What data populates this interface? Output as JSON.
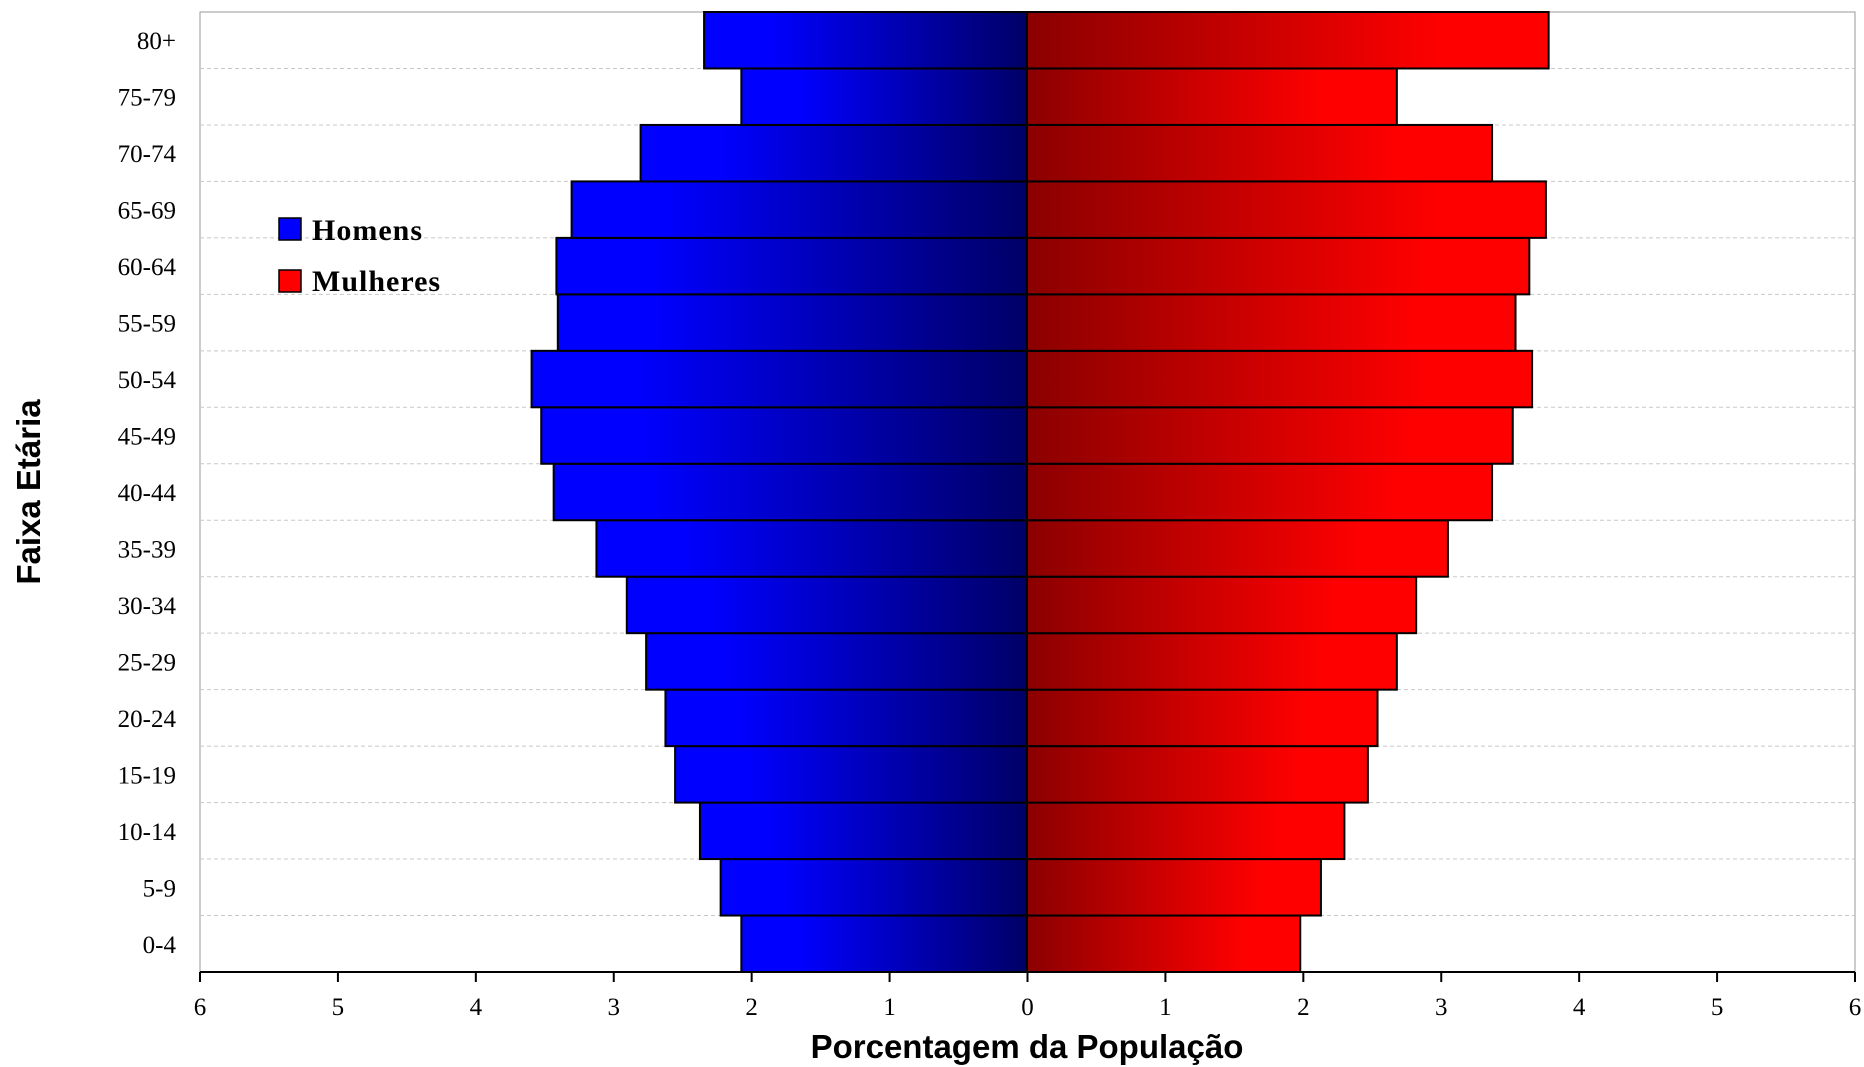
{
  "chart_data": {
    "type": "bar",
    "orientation": "horizontal",
    "layout": "population-pyramid",
    "title": "",
    "xlabel": "Porcentagem da População",
    "ylabel": "Faixa Etária",
    "xlim": [
      -6,
      6
    ],
    "x_ticks": [
      6,
      5,
      4,
      3,
      2,
      1,
      0,
      1,
      2,
      3,
      4,
      5,
      6
    ],
    "categories": [
      "0-4",
      "5-9",
      "10-14",
      "15-19",
      "20-24",
      "25-29",
      "30-34",
      "35-39",
      "40-44",
      "45-49",
      "50-54",
      "55-59",
      "60-64",
      "65-69",
      "70-74",
      "75-79",
      "80+"
    ],
    "series": [
      {
        "name": "Homens",
        "side": "left",
        "color": "#0000ff",
        "color_dark": "#000066",
        "values": [
          2.07,
          2.22,
          2.37,
          2.55,
          2.62,
          2.76,
          2.9,
          3.12,
          3.43,
          3.52,
          3.59,
          3.4,
          3.41,
          3.3,
          2.8,
          2.07,
          2.34
        ]
      },
      {
        "name": "Mulheres",
        "side": "right",
        "color": "#ff0000",
        "color_dark": "#8b0000",
        "values": [
          1.98,
          2.13,
          2.3,
          2.47,
          2.54,
          2.68,
          2.82,
          3.05,
          3.37,
          3.52,
          3.66,
          3.54,
          3.64,
          3.76,
          3.37,
          2.68,
          3.78
        ]
      }
    ],
    "grid": {
      "horizontal": true,
      "style": "dashed"
    },
    "legend": {
      "position": "upper-left",
      "items": [
        "Homens",
        "Mulheres"
      ]
    }
  }
}
